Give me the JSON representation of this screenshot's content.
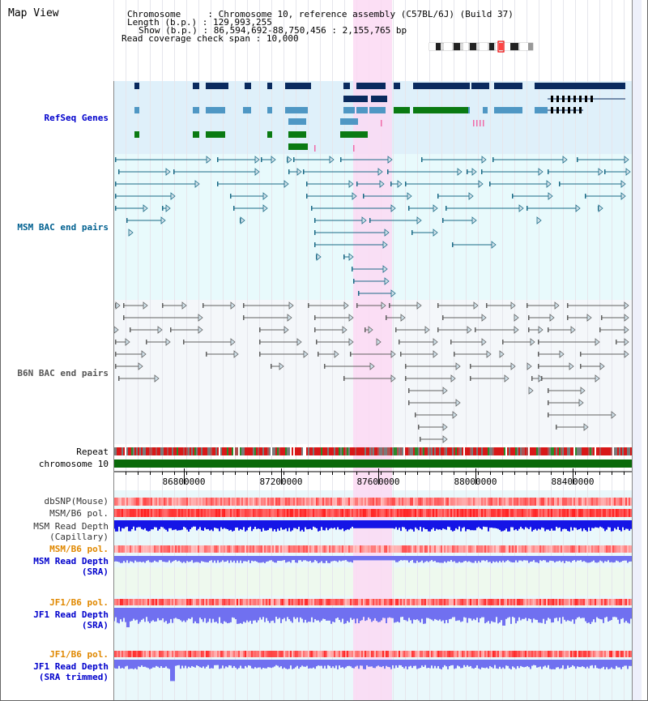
{
  "title": "Map View",
  "info": {
    "chromosome_label": "Chromosome",
    "chromosome_value": "Chromosome 10, reference assembly (C57BL/6J) (Build 37)",
    "length_label": "Length (b.p.)",
    "length_value": "129,993,255",
    "show_label": "Show (b.p.)",
    "show_value": "86,594,692-88,750,456 : 2,155,765 bp",
    "read_label": "Read coverage check span",
    "read_value": "10,000"
  },
  "tracks": {
    "refseq": "RefSeq Genes",
    "msm_bac": "MSM BAC end pairs",
    "b6n_bac": "B6N BAC end pairs",
    "repeat": "Repeat",
    "chromosome": "chromosome 10",
    "dbsnp": "dbSNP(Mouse)",
    "msm_pol": "MSM/B6 pol.",
    "msm_depth_cap_1": "MSM Read Depth",
    "msm_depth_cap_2": "(Capillary)",
    "msm_pol2": "MSM/B6 pol.",
    "msm_depth_sra_1": "MSM Read Depth",
    "msm_depth_sra_2": "(SRA)",
    "jf1_pol": "JF1/B6 pol.",
    "jf1_depth_1": "JF1 Read Depth",
    "jf1_depth_2": "(SRA)",
    "jf1_pol2": "JF1/B6 pol.",
    "jf1_trim_1": "JF1 Read Depth",
    "jf1_trim_2": "(SRA trimmed)"
  },
  "axis_ticks": [
    "86800000",
    "87200000",
    "87600000",
    "88000000",
    "88400000"
  ],
  "colors": {
    "refseq_bg": "#dff0fa",
    "bac_bg": "#e8fafc",
    "highlight": "#fbd9f3",
    "gene_dark": "#0a2a5e",
    "gene_light": "#4f97c4",
    "gene_green": "#0a7a12",
    "msm_line": "#1a6a86",
    "b6n_line": "#606060",
    "chrom": "#0a6a0a",
    "read_depth": "#1515e6",
    "read_depth_sra": "#7070f0"
  }
}
